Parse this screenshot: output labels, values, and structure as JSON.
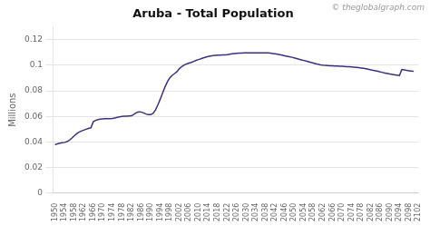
{
  "chart_data": {
    "type": "line",
    "title": "Aruba - Total Population",
    "ylabel": "Millions",
    "annotations": [
      "© theglobalgraph.com"
    ],
    "color": "#3d3080",
    "grid": "y",
    "xlim": [
      1949,
      2102
    ],
    "xticks": [
      1950,
      1954,
      1958,
      1962,
      1966,
      1970,
      1974,
      1978,
      1982,
      1986,
      1990,
      1994,
      1998,
      2002,
      2006,
      2010,
      2014,
      2018,
      2022,
      2026,
      2030,
      2034,
      2038,
      2042,
      2046,
      2050,
      2054,
      2058,
      2062,
      2066,
      2070,
      2074,
      2078,
      2082,
      2086,
      2090,
      2094,
      2098,
      2102
    ],
    "ylim": [
      0,
      0.13
    ],
    "yticks": [
      0,
      0.02,
      0.04,
      0.06,
      0.08,
      0.1,
      0.12
    ],
    "x": [
      1950,
      1951,
      1952,
      1953,
      1954,
      1955,
      1956,
      1957,
      1958,
      1959,
      1960,
      1961,
      1962,
      1963,
      1964,
      1965,
      1966,
      1967,
      1968,
      1969,
      1970,
      1971,
      1972,
      1973,
      1974,
      1975,
      1976,
      1977,
      1978,
      1979,
      1980,
      1981,
      1982,
      1983,
      1984,
      1985,
      1986,
      1987,
      1988,
      1989,
      1990,
      1991,
      1992,
      1993,
      1994,
      1995,
      1996,
      1997,
      1998,
      1999,
      2000,
      2001,
      2002,
      2003,
      2004,
      2005,
      2006,
      2007,
      2008,
      2009,
      2010,
      2011,
      2012,
      2013,
      2014,
      2015,
      2016,
      2017,
      2018,
      2019,
      2020,
      2021,
      2022,
      2023,
      2024,
      2025,
      2026,
      2027,
      2028,
      2029,
      2030,
      2031,
      2032,
      2033,
      2034,
      2035,
      2036,
      2037,
      2038,
      2039,
      2040,
      2041,
      2042,
      2043,
      2044,
      2045,
      2046,
      2047,
      2048,
      2049,
      2050,
      2051,
      2052,
      2053,
      2054,
      2055,
      2056,
      2057,
      2058,
      2059,
      2060,
      2061,
      2062,
      2063,
      2064,
      2065,
      2066,
      2067,
      2068,
      2069,
      2070,
      2071,
      2072,
      2073,
      2074,
      2075,
      2076,
      2077,
      2078,
      2079,
      2080,
      2081,
      2082,
      2083,
      2084,
      2085,
      2086,
      2087,
      2088,
      2089,
      2090,
      2091,
      2092,
      2093,
      2094,
      2095,
      2096,
      2097,
      2098,
      2099,
      2100
    ],
    "values": [
      0.0377,
      0.0385,
      0.039,
      0.0393,
      0.0396,
      0.0402,
      0.0413,
      0.0429,
      0.0447,
      0.0463,
      0.0476,
      0.0485,
      0.0492,
      0.0499,
      0.0505,
      0.051,
      0.0558,
      0.0568,
      0.0575,
      0.0578,
      0.058,
      0.0581,
      0.0581,
      0.0581,
      0.0583,
      0.0587,
      0.0592,
      0.0596,
      0.0599,
      0.0601,
      0.0602,
      0.0603,
      0.0604,
      0.0616,
      0.0629,
      0.0635,
      0.0634,
      0.0627,
      0.0618,
      0.0613,
      0.0613,
      0.0623,
      0.065,
      0.069,
      0.0735,
      0.0784,
      0.0831,
      0.0872,
      0.0901,
      0.0921,
      0.0935,
      0.095,
      0.0973,
      0.099,
      0.1002,
      0.101,
      0.1016,
      0.1022,
      0.103,
      0.1038,
      0.1044,
      0.105,
      0.1057,
      0.1063,
      0.1068,
      0.1072,
      0.1075,
      0.1077,
      0.1078,
      0.1079,
      0.108,
      0.108,
      0.1082,
      0.1086,
      0.1089,
      0.1091,
      0.1093,
      0.1094,
      0.1095,
      0.1096,
      0.1097,
      0.1097,
      0.1097,
      0.1097,
      0.1097,
      0.1097,
      0.1097,
      0.1097,
      0.1097,
      0.1096,
      0.1094,
      0.1092,
      0.1089,
      0.1086,
      0.1082,
      0.1078,
      0.1074,
      0.107,
      0.1066,
      0.1062,
      0.1057,
      0.1052,
      0.1047,
      0.1042,
      0.1037,
      0.1032,
      0.1027,
      0.1022,
      0.1017,
      0.1012,
      0.1007,
      0.1003,
      0.1,
      0.0998,
      0.0997,
      0.0996,
      0.0995,
      0.0994,
      0.0993,
      0.0992,
      0.0991,
      0.099,
      0.0989,
      0.0988,
      0.0987,
      0.0985,
      0.0983,
      0.0981,
      0.0978,
      0.0975,
      0.0972,
      0.0968,
      0.0964,
      0.096,
      0.0956,
      0.0952,
      0.0947,
      0.0943,
      0.0939,
      0.0935,
      0.0931,
      0.0928,
      0.0925,
      0.0922,
      0.0919,
      0.0966,
      0.0963,
      0.096,
      0.0957,
      0.0954,
      0.0952
    ]
  }
}
